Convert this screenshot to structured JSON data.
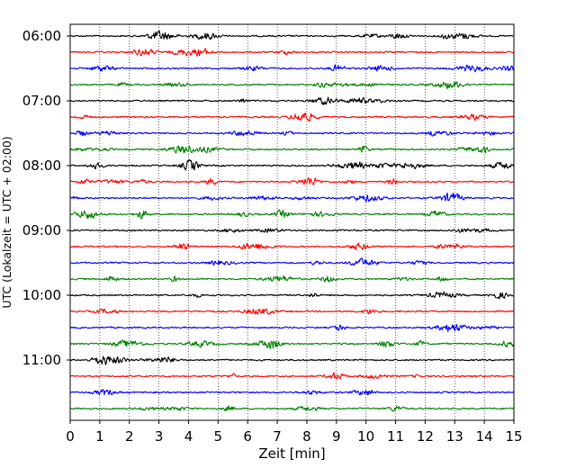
{
  "chart_data": {
    "type": "line",
    "title": "",
    "xlabel": "Zeit  [min]",
    "ylabel": "UTC (Lokalzeit = UTC + 02:00)",
    "xlim": [
      0,
      15
    ],
    "x_ticks": [
      0,
      1,
      2,
      3,
      4,
      5,
      6,
      7,
      8,
      9,
      10,
      11,
      12,
      13,
      14,
      15
    ],
    "x_tick_labels": [
      "0",
      "1",
      "2",
      "3",
      "4",
      "5",
      "6",
      "7",
      "8",
      "9",
      "10",
      "11",
      "12",
      "13",
      "14",
      "15"
    ],
    "y_tick_labels": [
      "06:00",
      "07:00",
      "08:00",
      "09:00",
      "10:00",
      "11:00"
    ],
    "start_time": "06:00",
    "trace_interval_minutes": 15,
    "trace_count": 24,
    "trace_colors": [
      "#000000",
      "#ff0000",
      "#0000ff",
      "#008000"
    ],
    "grid": "vertical dotted",
    "legend": "none"
  }
}
